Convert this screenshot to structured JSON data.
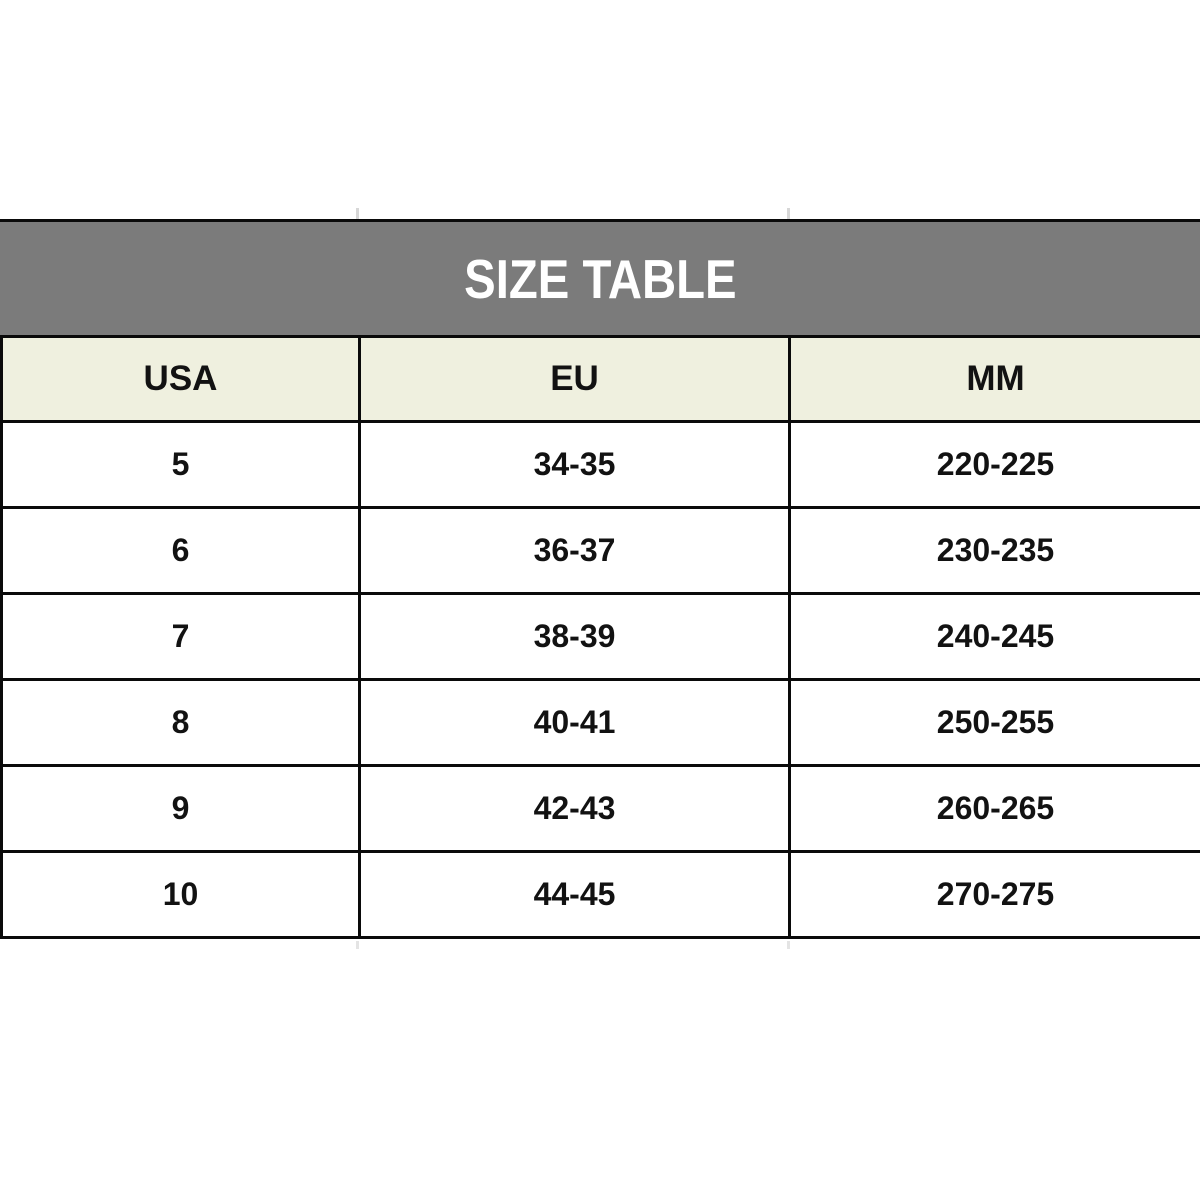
{
  "title": "SIZE TABLE",
  "chart_data": {
    "type": "table",
    "title": "SIZE TABLE",
    "columns": [
      "USA",
      "EU",
      "MM"
    ],
    "rows": [
      [
        "5",
        "34-35",
        "220-225"
      ],
      [
        "6",
        "36-37",
        "230-235"
      ],
      [
        "7",
        "38-39",
        "240-245"
      ],
      [
        "8",
        "40-41",
        "250-255"
      ],
      [
        "9",
        "42-43",
        "260-265"
      ],
      [
        "10",
        "44-45",
        "270-275"
      ]
    ]
  },
  "colors": {
    "page_background": "#ffffff",
    "banner_background": "#7b7b7b",
    "banner_text": "#ffffff",
    "header_row_background": "#eff0df",
    "border": "#0a0a0a",
    "body_text": "#121212"
  }
}
